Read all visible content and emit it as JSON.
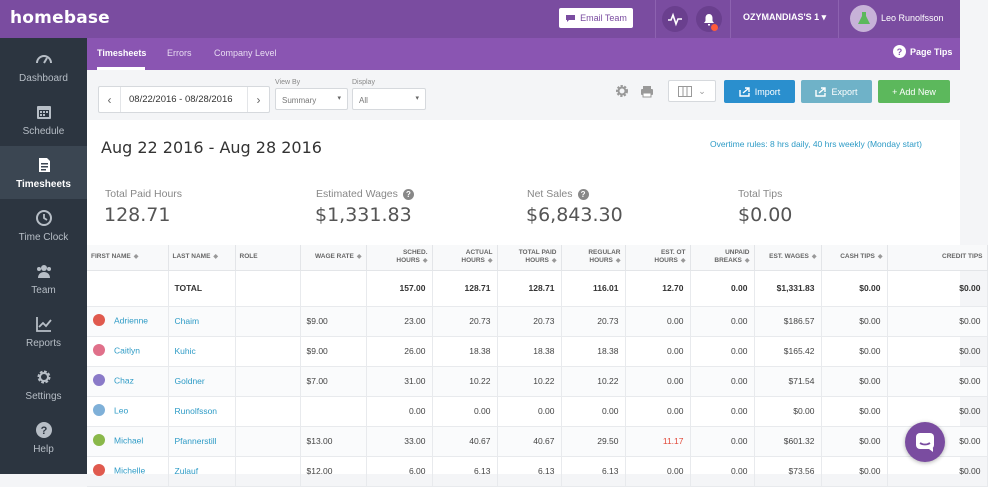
{
  "app": {
    "logo": "homebase"
  },
  "topbar": {
    "email_team": "Email Team",
    "location": "OZYMANDIAS'S 1 ▾",
    "username": "Leo Runolfsson"
  },
  "subnav": {
    "tabs": [
      {
        "label": "Timesheets",
        "active": true
      },
      {
        "label": "Errors",
        "active": false
      },
      {
        "label": "Company Level",
        "active": false
      }
    ],
    "page_tips": "Page Tips"
  },
  "sidebar": {
    "items": [
      {
        "label": "Dashboard",
        "icon": "dashboard-icon"
      },
      {
        "label": "Schedule",
        "icon": "calendar-icon"
      },
      {
        "label": "Timesheets",
        "icon": "timesheets-icon",
        "active": true
      },
      {
        "label": "Time Clock",
        "icon": "clock-icon"
      },
      {
        "label": "Team",
        "icon": "team-icon"
      },
      {
        "label": "Reports",
        "icon": "reports-icon"
      },
      {
        "label": "Settings",
        "icon": "gear-icon"
      },
      {
        "label": "Help",
        "icon": "help-icon"
      }
    ]
  },
  "toolbar": {
    "date_range": "08/22/2016 - 08/28/2016",
    "view_by_label": "View By",
    "view_by_value": "Summary",
    "display_label": "Display",
    "display_value": "All",
    "import_label": "Import",
    "export_label": "Export",
    "add_new_label": "+ Add New",
    "colors": {
      "import": "#2a8fce",
      "export": "#6fb2c8",
      "add_new": "#5cb85c"
    }
  },
  "summary": {
    "title": "Aug 22 2016 - Aug 28 2016",
    "overtime_rules": "Overtime rules: 8 hrs daily, 40 hrs weekly (Monday start)",
    "stats": [
      {
        "label": "Total Paid Hours",
        "value": "128.71"
      },
      {
        "label": "Estimated Wages",
        "value": "$1,331.83"
      },
      {
        "label": "Net Sales",
        "value": "$6,843.30"
      },
      {
        "label": "Total Tips",
        "value": "$0.00"
      }
    ]
  },
  "table": {
    "headers": [
      "FIRST NAME",
      "LAST NAME",
      "ROLE",
      "WAGE RATE",
      "SCHED. HOURS",
      "ACTUAL HOURS",
      "TOTAL PAID HOURS",
      "REGULAR HOURS",
      "EST. OT HOURS",
      "UNPAID BREAKS",
      "EST. WAGES",
      "CASH TIPS",
      "CREDIT TIPS"
    ],
    "total": [
      "",
      "TOTAL",
      "",
      "",
      "157.00",
      "128.71",
      "128.71",
      "116.01",
      "12.70",
      "0.00",
      "$1,331.83",
      "$0.00",
      "$0.00"
    ],
    "rows": [
      {
        "first": "Adrienne",
        "last": "Chaim",
        "role": "",
        "wage": "$9.00",
        "sched": "23.00",
        "actual": "20.73",
        "paid": "20.73",
        "regular": "20.73",
        "ot": "0.00",
        "breaks": "0.00",
        "wages": "$186.57",
        "cash": "$0.00",
        "credit": "$0.00",
        "icon_color": "#e05a4e"
      },
      {
        "first": "Caitlyn",
        "last": "Kuhic",
        "role": "",
        "wage": "$9.00",
        "sched": "26.00",
        "actual": "18.38",
        "paid": "18.38",
        "regular": "18.38",
        "ot": "0.00",
        "breaks": "0.00",
        "wages": "$165.42",
        "cash": "$0.00",
        "credit": "$0.00",
        "icon_color": "#e0708a"
      },
      {
        "first": "Chaz",
        "last": "Goldner",
        "role": "",
        "wage": "$7.00",
        "sched": "31.00",
        "actual": "10.22",
        "paid": "10.22",
        "regular": "10.22",
        "ot": "0.00",
        "breaks": "0.00",
        "wages": "$71.54",
        "cash": "$0.00",
        "credit": "$0.00",
        "icon_color": "#8a7ac8"
      },
      {
        "first": "Leo",
        "last": "Runolfsson",
        "role": "",
        "wage": "",
        "sched": "0.00",
        "actual": "0.00",
        "paid": "0.00",
        "regular": "0.00",
        "ot": "0.00",
        "breaks": "0.00",
        "wages": "$0.00",
        "cash": "$0.00",
        "credit": "$0.00",
        "icon_color": "#7fb0d8"
      },
      {
        "first": "Michael",
        "last": "Pfannerstill",
        "role": "",
        "wage": "$13.00",
        "sched": "33.00",
        "actual": "40.67",
        "paid": "40.67",
        "regular": "29.50",
        "ot": "11.17",
        "breaks": "0.00",
        "wages": "$601.32",
        "cash": "$0.00",
        "credit": "$0.00",
        "icon_color": "#8ab84a",
        "ot_red": true
      },
      {
        "first": "Michelle",
        "last": "Zulauf",
        "role": "",
        "wage": "$12.00",
        "sched": "6.00",
        "actual": "6.13",
        "paid": "6.13",
        "regular": "6.13",
        "ot": "0.00",
        "breaks": "0.00",
        "wages": "$73.56",
        "cash": "$0.00",
        "credit": "$0.00",
        "icon_color": "#e05a4e"
      }
    ]
  }
}
